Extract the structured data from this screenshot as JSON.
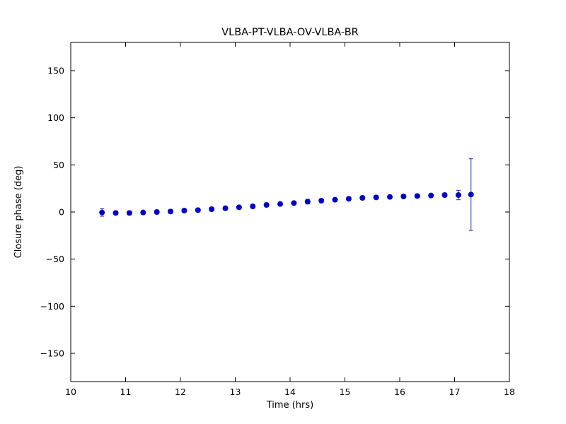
{
  "figure": {
    "background": "#ffffff"
  },
  "chart_data": {
    "type": "scatter",
    "title": "VLBA-PT-VLBA-OV-VLBA-BR",
    "xlabel": "Time (hrs)",
    "ylabel": "Closure phase (deg)",
    "xlim": [
      10,
      18
    ],
    "ylim": [
      -180,
      180
    ],
    "xticks": [
      10,
      11,
      12,
      13,
      14,
      15,
      16,
      17,
      18
    ],
    "yticks": [
      -150,
      -100,
      -50,
      0,
      50,
      100,
      150
    ],
    "grid": false,
    "legend": false,
    "marker_style": "filled-circle",
    "marker_color": "#0000cc",
    "errorbar_color": "#2222cc",
    "axis_color": "#000000",
    "series": [
      {
        "name": "closure-phase",
        "x": [
          10.57,
          10.82,
          11.07,
          11.32,
          11.57,
          11.82,
          12.07,
          12.32,
          12.57,
          12.82,
          13.07,
          13.32,
          13.57,
          13.82,
          14.07,
          14.32,
          14.57,
          14.82,
          15.07,
          15.32,
          15.57,
          15.82,
          16.07,
          16.32,
          16.57,
          16.82,
          17.07,
          17.3
        ],
        "y": [
          -0.5,
          -1.0,
          -1.0,
          -0.5,
          0.0,
          0.5,
          1.5,
          2.0,
          3.0,
          4.0,
          5.0,
          6.0,
          7.5,
          8.5,
          9.5,
          11.0,
          12.0,
          13.0,
          14.0,
          15.0,
          15.5,
          16.0,
          16.5,
          17.0,
          17.5,
          18.0,
          18.0,
          18.5
        ],
        "yerr": [
          4.0,
          2.0,
          2.0,
          2.0,
          2.0,
          2.0,
          2.0,
          2.0,
          2.0,
          2.0,
          2.0,
          2.0,
          2.0,
          2.0,
          2.0,
          2.5,
          2.0,
          2.0,
          2.0,
          2.0,
          2.0,
          2.0,
          2.0,
          2.0,
          2.0,
          2.0,
          5.0,
          38.0
        ]
      }
    ]
  }
}
